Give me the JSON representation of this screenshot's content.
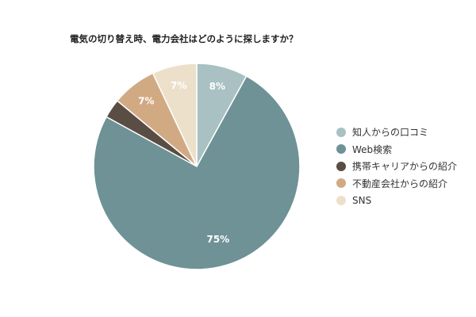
{
  "chart_data": {
    "type": "pie",
    "title": "電気の切り替え時、電力会社はどのように探しますか？",
    "categories": [
      "知人からの口コミ",
      "Web検索",
      "携帯キャリアからの紹介",
      "不動産会社からの紹介",
      "SNS"
    ],
    "values": [
      8,
      75,
      3,
      7,
      7
    ],
    "data_labels": [
      "8%",
      "75%",
      "",
      "7%",
      "7%"
    ],
    "colors": [
      "#a9c1c2",
      "#6e9296",
      "#5a4d44",
      "#d1aa84",
      "#ece0ca"
    ],
    "legend_position": "right",
    "start_angle": "12 o'clock",
    "direction": "clockwise"
  }
}
